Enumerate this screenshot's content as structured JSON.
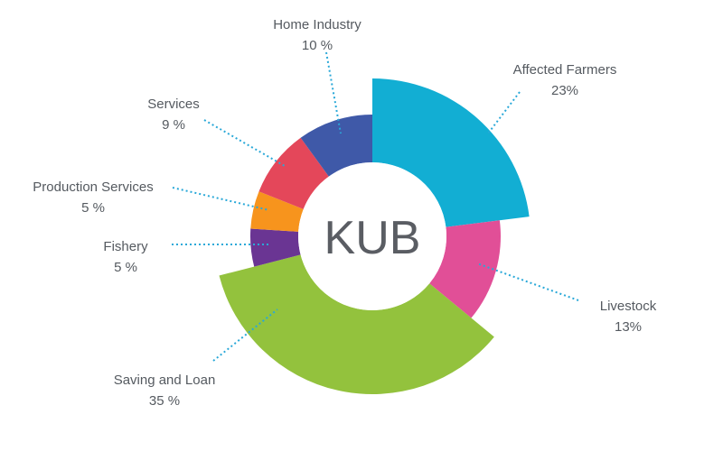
{
  "chart_data": {
    "type": "pie",
    "variant": "donut",
    "center_label": "KUB",
    "slices": [
      {
        "name": "Affected Farmers",
        "value_label": "23%",
        "value": 23,
        "color": "#12aed3"
      },
      {
        "name": "Livestock",
        "value_label": "13%",
        "value": 13,
        "color": "#e14f97"
      },
      {
        "name": "Saving and Loan",
        "value_label": "35 %",
        "value": 35,
        "color": "#93c23d"
      },
      {
        "name": "Fishery",
        "value_label": "5 %",
        "value": 5,
        "color": "#6a3593"
      },
      {
        "name": "Production Services",
        "value_label": "5 %",
        "value": 5,
        "color": "#f7941d"
      },
      {
        "name": "Services",
        "value_label": "9 %",
        "value": 9,
        "color": "#e4475a"
      },
      {
        "name": "Home Industry",
        "value_label": "10 %",
        "value": 10,
        "color": "#3f59a8"
      }
    ],
    "leader_line_color": "#29a8d8",
    "text_color": "#555a60"
  }
}
